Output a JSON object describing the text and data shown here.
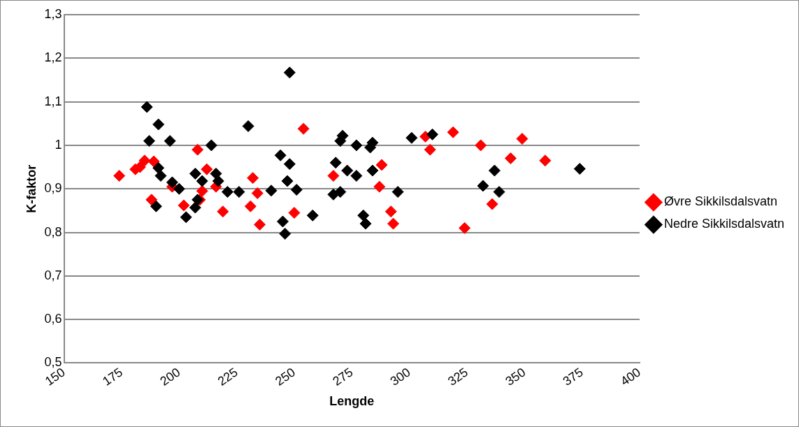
{
  "chart_data": {
    "type": "scatter",
    "xlabel": "Lengde",
    "ylabel": "K-faktor",
    "xlim": [
      150,
      400
    ],
    "xticks": [
      150,
      175,
      200,
      225,
      250,
      275,
      300,
      325,
      350,
      375,
      400
    ],
    "ylim": [
      0.5,
      1.3
    ],
    "yticks": [
      {
        "value": 0.5,
        "label": "0,5"
      },
      {
        "value": 0.6,
        "label": "0,6"
      },
      {
        "value": 0.7,
        "label": "0,7"
      },
      {
        "value": 0.8,
        "label": "0,8"
      },
      {
        "value": 0.9,
        "label": "0,9"
      },
      1,
      {
        "value": 1.1,
        "label": "1,1"
      },
      {
        "value": 1.2,
        "label": "1,2"
      },
      {
        "value": 1.3,
        "label": "1,3"
      }
    ],
    "grid": "y",
    "legend": "right",
    "marker": "diamond",
    "series": [
      {
        "name": "Øvre Sikkilsdalsvatn",
        "color": "#ff0000",
        "x": [
          174,
          181,
          183,
          185,
          188,
          189,
          197,
          202,
          208,
          209,
          210,
          212,
          216,
          219,
          231,
          232,
          234,
          235,
          250,
          254,
          267,
          287,
          288,
          292,
          293,
          307,
          309,
          319,
          324,
          331,
          336,
          344,
          349,
          359
        ],
        "values": [
          0.93,
          0.945,
          0.95,
          0.965,
          0.875,
          0.963,
          0.905,
          0.862,
          0.99,
          0.875,
          0.895,
          0.945,
          0.905,
          0.848,
          0.86,
          0.925,
          0.89,
          0.818,
          0.845,
          1.038,
          0.93,
          0.905,
          0.955,
          0.848,
          0.82,
          1.02,
          0.99,
          1.03,
          0.81,
          1.0,
          0.865,
          0.97,
          1.015,
          0.965
        ]
      },
      {
        "name": "Nedre Sikkilsdalsvatn",
        "color": "#000000",
        "x": [
          186,
          191,
          187,
          191,
          192,
          190,
          196,
          197,
          200,
          203,
          207,
          208,
          207,
          210,
          214,
          216,
          217,
          221,
          226,
          230,
          240,
          244,
          245,
          246,
          248,
          248,
          247,
          251,
          258,
          267,
          268,
          270,
          271,
          270,
          273,
          277,
          277,
          280,
          281,
          283,
          284,
          284,
          295,
          301,
          310,
          332,
          337,
          339,
          374
        ],
        "values": [
          1.088,
          1.048,
          1.01,
          0.948,
          0.93,
          0.86,
          1.01,
          0.915,
          0.9,
          0.835,
          0.935,
          0.875,
          0.857,
          0.918,
          1.0,
          0.935,
          0.918,
          0.893,
          0.893,
          1.044,
          0.896,
          0.977,
          0.825,
          0.797,
          1.167,
          0.957,
          0.918,
          0.898,
          0.839,
          0.887,
          0.96,
          1.01,
          1.022,
          0.893,
          0.942,
          0.93,
          1.0,
          0.839,
          0.82,
          0.995,
          0.942,
          1.006,
          0.893,
          1.017,
          1.025,
          0.907,
          0.942,
          0.893,
          0.946
        ]
      }
    ]
  }
}
